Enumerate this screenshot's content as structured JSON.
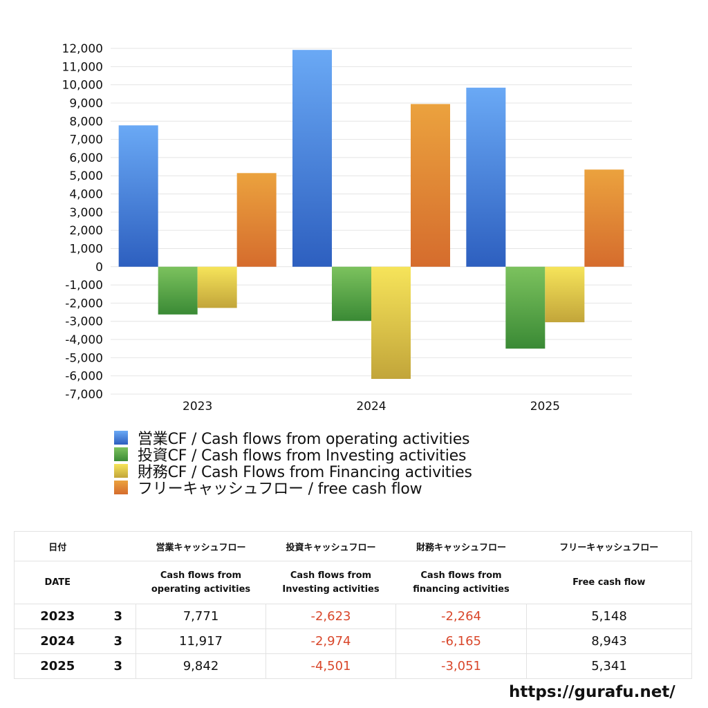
{
  "chart_data": {
    "type": "bar",
    "categories": [
      "2023",
      "2024",
      "2025"
    ],
    "series": [
      {
        "name": "営業CF / Cash flows from operating activities",
        "values": [
          7771,
          11917,
          9842
        ],
        "color_top": "#6aa9f5",
        "color_bottom": "#2d5fbf"
      },
      {
        "name": "投資CF / Cash flows from Investing activities",
        "values": [
          -2623,
          -2974,
          -4501
        ],
        "color_top": "#7cc25e",
        "color_bottom": "#3a8a35"
      },
      {
        "name": "財務CF / Cash Flows from Financing activities",
        "values": [
          -2264,
          -6165,
          -3051
        ],
        "color_top": "#f6e45a",
        "color_bottom": "#c2a53a"
      },
      {
        "name": "フリーキャッシュフロー / free cash flow",
        "values": [
          5148,
          8943,
          5341
        ],
        "color_top": "#eba23e",
        "color_bottom": "#d56c2d"
      }
    ],
    "ylim": [
      -7000,
      12000
    ],
    "yticks": [
      "12,000",
      "11,000",
      "10,000",
      "9,000",
      "8,000",
      "7,000",
      "6,000",
      "5,000",
      "4,000",
      "3,000",
      "2,000",
      "1,000",
      "0",
      "-1,000",
      "-2,000",
      "-3,000",
      "-4,000",
      "-5,000",
      "-6,000",
      "-7,000"
    ],
    "grid": true,
    "legend_position": "bottom-left"
  },
  "table": {
    "header_jp": [
      "日付",
      "",
      "営業キャッシュフロー",
      "投資キャッシュフロー",
      "財務キャッシュフロー",
      "フリーキャッシュフロー"
    ],
    "header_en": [
      "DATE",
      "",
      "Cash flows from\noperating activities",
      "Cash flows from\nInvesting activities",
      "Cash flows from\nfinancing activities",
      "Free cash flow"
    ],
    "rows": [
      {
        "year": "2023",
        "month": "3",
        "op": "7,771",
        "inv": "-2,623",
        "fin": "-2,264",
        "fcf": "5,148"
      },
      {
        "year": "2024",
        "month": "3",
        "op": "11,917",
        "inv": "-2,974",
        "fin": "-6,165",
        "fcf": "8,943"
      },
      {
        "year": "2025",
        "month": "3",
        "op": "9,842",
        "inv": "-4,501",
        "fin": "-3,051",
        "fcf": "5,341"
      }
    ]
  },
  "footer": {
    "url": "https://gurafu.net/"
  }
}
